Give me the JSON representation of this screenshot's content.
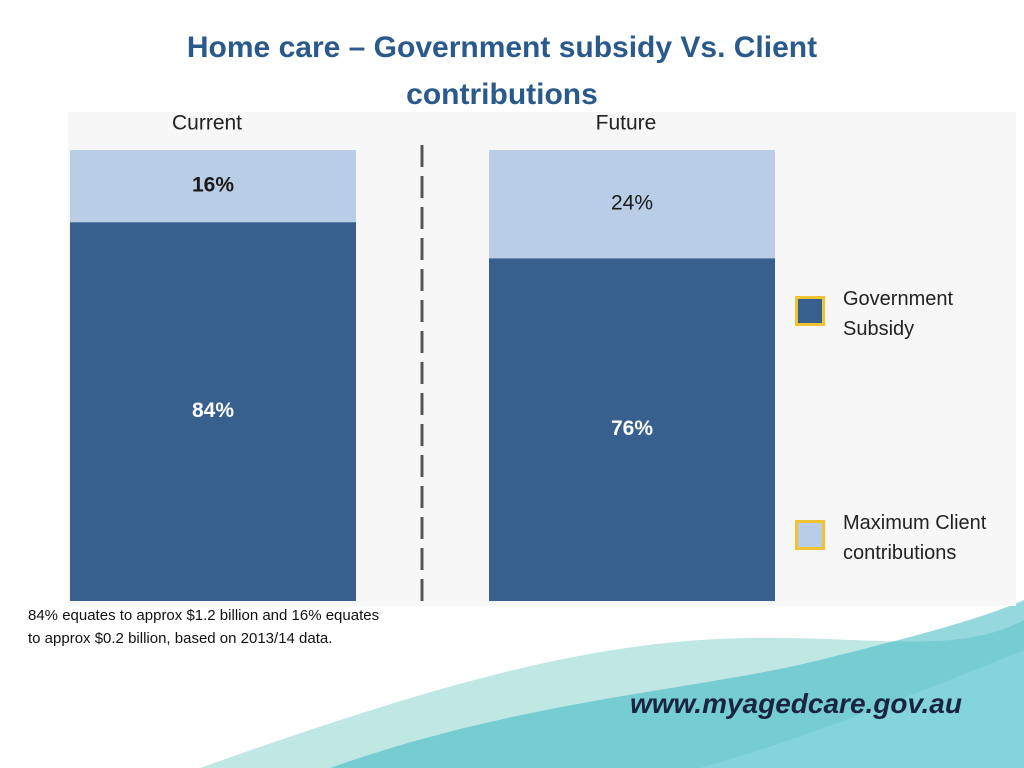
{
  "chart_data": {
    "type": "bar",
    "stacked": true,
    "title": "Home care – Government subsidy Vs. Client contributions",
    "categories": [
      "Current",
      "Future"
    ],
    "series": [
      {
        "name": "Government Subsidy",
        "color": "#37608f",
        "label_color": "#ffffff",
        "values": [
          84,
          76
        ],
        "value_labels": [
          "84%",
          "76%"
        ]
      },
      {
        "name": "Maximum Client contributions",
        "color": "#b9cde6",
        "label_color": "#1a1a1a",
        "values": [
          16,
          24
        ],
        "value_labels": [
          "16%",
          "24%"
        ]
      }
    ],
    "legend": "right",
    "note": "84% equates to approx $1.2 billion and 16% equates to approx $0.2 billion, based on 2013/14 data.",
    "website": "www.myagedcare.gov.au"
  }
}
